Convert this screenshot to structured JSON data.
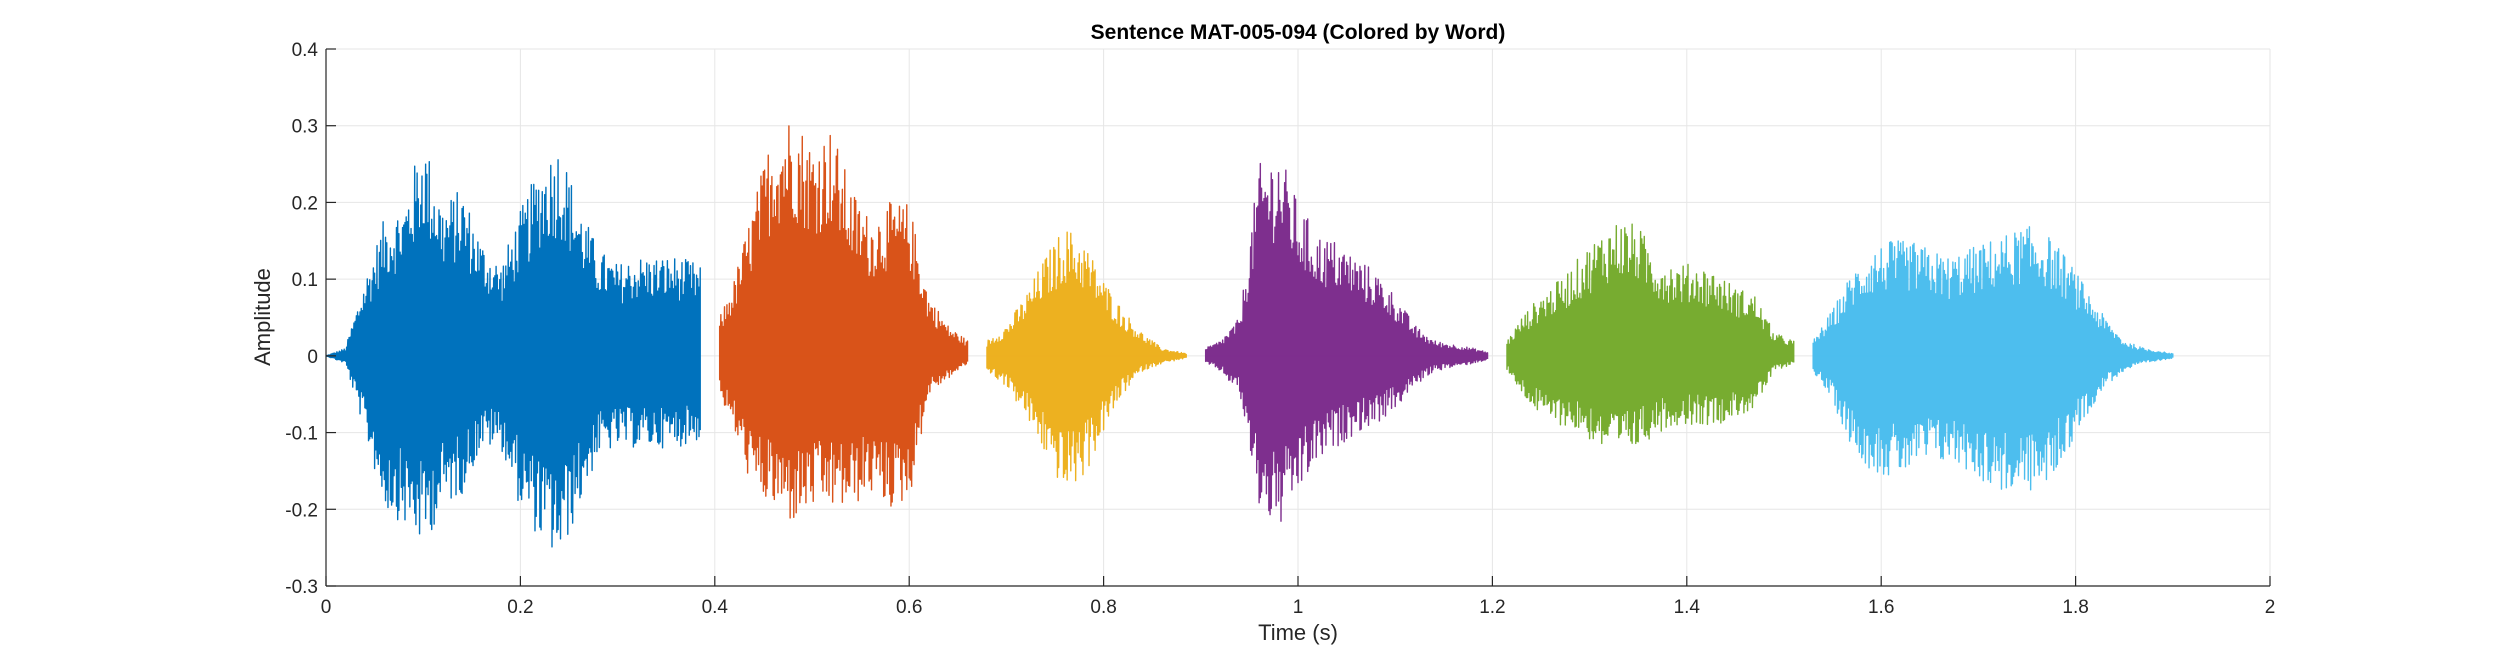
{
  "chart_data": {
    "type": "line",
    "title": "Sentence MAT-005-094 (Colored by Word)",
    "xlabel": "Time (s)",
    "ylabel": "Amplitude",
    "xlim": [
      0,
      2
    ],
    "ylim": [
      -0.3,
      0.4
    ],
    "grid": true,
    "legend": "none",
    "x_ticks": [
      0,
      0.2,
      0.4,
      0.6,
      0.8,
      1,
      1.2,
      1.4,
      1.6,
      1.8,
      2
    ],
    "x_tick_labels": [
      "0",
      "0.2",
      "0.4",
      "0.6",
      "0.8",
      "1",
      "1.2",
      "1.4",
      "1.6",
      "1.8",
      "2"
    ],
    "y_ticks": [
      -0.3,
      -0.2,
      -0.1,
      0,
      0.1,
      0.2,
      0.3,
      0.4
    ],
    "y_tick_labels": [
      "-0.3",
      "-0.2",
      "-0.1",
      "0",
      "0.1",
      "0.2",
      "0.3",
      "0.4"
    ],
    "series": [
      {
        "color": "#0072BD",
        "start": 0.0,
        "end": 0.385,
        "envelope": {
          "t": [
            0.0,
            0.02,
            0.04,
            0.06,
            0.08,
            0.1,
            0.12,
            0.14,
            0.16,
            0.18,
            0.2,
            0.22,
            0.24,
            0.26,
            0.28,
            0.3,
            0.32,
            0.34,
            0.36,
            0.385
          ],
          "pos": [
            0.0,
            0.01,
            0.1,
            0.18,
            0.2,
            0.29,
            0.2,
            0.22,
            0.15,
            0.12,
            0.19,
            0.25,
            0.28,
            0.2,
            0.14,
            0.12,
            0.13,
            0.13,
            0.13,
            0.12
          ],
          "neg": [
            0.0,
            -0.01,
            -0.1,
            -0.2,
            -0.22,
            -0.25,
            -0.2,
            -0.18,
            -0.12,
            -0.12,
            -0.2,
            -0.24,
            -0.27,
            -0.2,
            -0.13,
            -0.12,
            -0.12,
            -0.12,
            -0.12,
            -0.11
          ]
        }
      },
      {
        "color": "#D95319",
        "start": 0.405,
        "end": 0.66,
        "envelope": {
          "t": [
            0.405,
            0.42,
            0.44,
            0.46,
            0.48,
            0.5,
            0.52,
            0.54,
            0.56,
            0.58,
            0.6,
            0.62,
            0.64,
            0.66
          ],
          "pos": [
            0.05,
            0.1,
            0.2,
            0.3,
            0.32,
            0.28,
            0.3,
            0.22,
            0.18,
            0.2,
            0.2,
            0.08,
            0.04,
            0.02
          ],
          "neg": [
            -0.05,
            -0.1,
            -0.18,
            -0.2,
            -0.22,
            -0.2,
            -0.2,
            -0.2,
            -0.18,
            -0.2,
            -0.19,
            -0.05,
            -0.03,
            -0.01
          ]
        }
      },
      {
        "color": "#EDB120",
        "start": 0.68,
        "end": 0.885,
        "envelope": {
          "t": [
            0.68,
            0.7,
            0.72,
            0.74,
            0.76,
            0.78,
            0.8,
            0.82,
            0.84,
            0.86,
            0.885
          ],
          "pos": [
            0.02,
            0.04,
            0.08,
            0.13,
            0.17,
            0.15,
            0.1,
            0.06,
            0.03,
            0.01,
            0.003
          ],
          "neg": [
            -0.02,
            -0.04,
            -0.08,
            -0.13,
            -0.18,
            -0.16,
            -0.1,
            -0.05,
            -0.02,
            -0.01,
            -0.003
          ]
        }
      },
      {
        "color": "#7E2F8E",
        "start": 0.905,
        "end": 1.195,
        "envelope": {
          "t": [
            0.905,
            0.92,
            0.94,
            0.96,
            0.98,
            1.0,
            1.02,
            1.04,
            1.06,
            1.08,
            1.1,
            1.12,
            1.14,
            1.16,
            1.18,
            1.195
          ],
          "pos": [
            0.01,
            0.02,
            0.05,
            0.25,
            0.27,
            0.2,
            0.16,
            0.15,
            0.13,
            0.11,
            0.08,
            0.04,
            0.02,
            0.015,
            0.01,
            0.005
          ],
          "neg": [
            -0.01,
            -0.02,
            -0.05,
            -0.2,
            -0.23,
            -0.18,
            -0.14,
            -0.12,
            -0.1,
            -0.09,
            -0.07,
            -0.04,
            -0.02,
            -0.015,
            -0.01,
            -0.005
          ]
        }
      },
      {
        "color": "#77AC30",
        "start": 1.215,
        "end": 1.51,
        "envelope": {
          "t": [
            1.215,
            1.23,
            1.25,
            1.27,
            1.29,
            1.31,
            1.33,
            1.35,
            1.37,
            1.39,
            1.41,
            1.43,
            1.45,
            1.47,
            1.49,
            1.51
          ],
          "pos": [
            0.02,
            0.05,
            0.08,
            0.1,
            0.13,
            0.16,
            0.18,
            0.17,
            0.13,
            0.12,
            0.12,
            0.11,
            0.09,
            0.08,
            0.03,
            0.02
          ],
          "neg": [
            -0.02,
            -0.05,
            -0.08,
            -0.09,
            -0.1,
            -0.12,
            -0.13,
            -0.12,
            -0.1,
            -0.09,
            -0.09,
            -0.09,
            -0.08,
            -0.07,
            -0.02,
            -0.01
          ]
        }
      },
      {
        "color": "#4DBEEE",
        "start": 1.53,
        "end": 1.9,
        "envelope": {
          "t": [
            1.53,
            1.55,
            1.57,
            1.59,
            1.61,
            1.63,
            1.65,
            1.67,
            1.69,
            1.71,
            1.73,
            1.75,
            1.77,
            1.79,
            1.81,
            1.83,
            1.85,
            1.87,
            1.9
          ],
          "pos": [
            0.02,
            0.06,
            0.11,
            0.14,
            0.15,
            0.15,
            0.14,
            0.13,
            0.14,
            0.15,
            0.16,
            0.17,
            0.16,
            0.13,
            0.09,
            0.05,
            0.02,
            0.01,
            0.003
          ],
          "neg": [
            -0.02,
            -0.06,
            -0.12,
            -0.15,
            -0.16,
            -0.15,
            -0.14,
            -0.14,
            -0.15,
            -0.17,
            -0.18,
            -0.18,
            -0.17,
            -0.13,
            -0.08,
            -0.04,
            -0.02,
            -0.01,
            -0.003
          ]
        }
      }
    ]
  }
}
